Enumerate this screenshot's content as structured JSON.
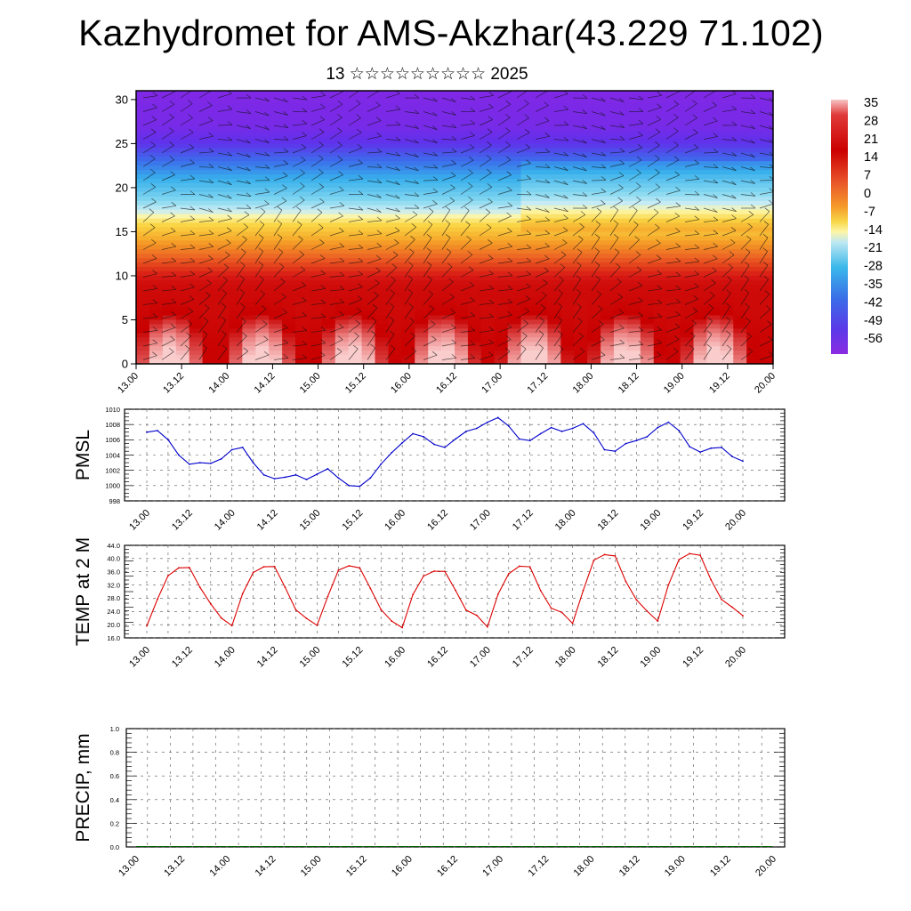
{
  "header": {
    "title": "Kazhydromet for AMS-Akzhar(43.229 71.102)",
    "subtitle": "13 ☆☆☆☆☆☆☆☆☆ 2025"
  },
  "colorbar": {
    "labels": [
      "35",
      "28",
      "21",
      "14",
      "7",
      "0",
      "-7",
      "-14",
      "-21",
      "-28",
      "-35",
      "-42",
      "-49",
      "-56"
    ]
  },
  "chart_data": [
    {
      "type": "heatmap",
      "title": "",
      "xlabel": "",
      "ylabel": "",
      "x_ticks": [
        "13.00",
        "13.12",
        "14.00",
        "14.12",
        "15.00",
        "15.12",
        "16.00",
        "16.12",
        "17.00",
        "17.12",
        "18.00",
        "18.12",
        "19.00",
        "19.12",
        "20.00"
      ],
      "y_ticks": [
        "0",
        "5",
        "10",
        "15",
        "20",
        "25",
        "30"
      ],
      "ylim": [
        0,
        31
      ],
      "colormap": "temperature (blue-purple = cold, red = warm), overlaid with wind barbs",
      "vertical_profile": {
        "level": [
          0,
          3,
          6,
          9,
          12,
          14,
          16,
          17,
          19,
          21,
          23,
          25,
          27,
          31
        ],
        "value": [
          33,
          30,
          26,
          24,
          12,
          4,
          -5,
          -12,
          -22,
          -30,
          -40,
          -50,
          -56,
          -58
        ]
      }
    },
    {
      "type": "line",
      "ylabel": "PMSL",
      "color": "#0000cc",
      "ylim": [
        998,
        1010
      ],
      "y_ticks": [
        "998",
        "1000",
        "1002",
        "1004",
        "1006",
        "1008",
        "1010"
      ],
      "x_ticks": [
        "13.00",
        "13.12",
        "14.00",
        "14.12",
        "15.00",
        "15.12",
        "16.00",
        "16.12",
        "17.00",
        "17.12",
        "18.00",
        "18.12",
        "19.00",
        "19.12",
        "20.00"
      ],
      "x_hours": [
        0,
        3,
        6,
        9,
        12,
        15,
        18,
        21,
        24,
        27,
        30,
        33,
        36,
        39,
        42,
        45,
        48,
        51,
        54,
        57,
        60,
        63,
        66,
        69,
        72,
        75,
        78,
        81,
        84,
        87,
        90,
        93,
        96,
        99,
        102,
        105,
        108,
        111,
        114,
        117,
        120,
        123,
        126,
        129,
        132,
        135,
        138,
        141,
        144,
        147,
        150,
        153,
        156,
        159,
        162,
        165,
        168
      ],
      "values": [
        1007.0,
        1007.2,
        1006.0,
        1004.0,
        1002.8,
        1003.0,
        1002.9,
        1003.5,
        1004.7,
        1005.0,
        1003.0,
        1001.4,
        1000.9,
        1001.1,
        1001.4,
        1000.8,
        1001.5,
        1002.2,
        1001.0,
        1000.0,
        999.9,
        1001.0,
        1002.8,
        1004.3,
        1005.6,
        1006.8,
        1006.4,
        1005.4,
        1005.0,
        1006.1,
        1007.1,
        1007.5,
        1008.3,
        1008.9,
        1007.8,
        1006.1,
        1005.9,
        1006.8,
        1007.6,
        1007.1,
        1007.5,
        1008.1,
        1006.9,
        1004.7,
        1004.5,
        1005.5,
        1005.9,
        1006.4,
        1007.6,
        1008.3,
        1007.2,
        1005.1,
        1004.4,
        1004.9,
        1005.0,
        1003.8,
        1003.2
      ]
    },
    {
      "type": "line",
      "ylabel": "TEMP at 2 M",
      "color": "#dd0000",
      "ylim": [
        16,
        44
      ],
      "y_ticks": [
        "16.0",
        "20.0",
        "24.0",
        "28.0",
        "32.0",
        "36.0",
        "40.0",
        "44.0"
      ],
      "x_ticks": [
        "13.00",
        "13.12",
        "14.00",
        "14.12",
        "15.00",
        "15.12",
        "16.00",
        "16.12",
        "17.00",
        "17.12",
        "18.00",
        "18.12",
        "19.00",
        "19.12",
        "20.00"
      ],
      "x_hours": [
        0,
        3,
        6,
        9,
        12,
        15,
        18,
        21,
        24,
        27,
        30,
        33,
        36,
        39,
        42,
        45,
        48,
        51,
        54,
        57,
        60,
        63,
        66,
        69,
        72,
        75,
        78,
        81,
        84,
        87,
        90,
        93,
        96,
        99,
        102,
        105,
        108,
        111,
        114,
        117,
        120,
        123,
        126,
        129,
        132,
        135,
        138,
        141,
        144,
        147,
        150,
        153,
        156,
        159,
        162,
        165,
        168
      ],
      "values": [
        19.6,
        27.7,
        34.8,
        37.2,
        37.3,
        31.3,
        26.3,
        22.0,
        19.7,
        29.4,
        35.8,
        37.5,
        37.6,
        31.3,
        24.5,
        21.9,
        19.8,
        28.5,
        36.5,
        37.8,
        37.2,
        31.0,
        24.6,
        21.1,
        19.1,
        29.1,
        34.7,
        36.2,
        36.1,
        30.4,
        24.4,
        22.8,
        19.3,
        29.2,
        35.4,
        37.7,
        37.5,
        30.3,
        25.0,
        23.7,
        20.4,
        30.3,
        39.5,
        41.2,
        40.8,
        33.1,
        27.5,
        24.1,
        21.1,
        32.0,
        39.7,
        41.5,
        41.0,
        33.6,
        27.6,
        25.3,
        22.7
      ]
    },
    {
      "type": "bar",
      "ylabel": "PRECIP, mm",
      "color": "#006400",
      "ylim": [
        0,
        1
      ],
      "y_ticks": [
        "0.0",
        "0.2",
        "0.4",
        "0.6",
        "0.8",
        "1.0"
      ],
      "x_ticks": [
        "13.00",
        "13.12",
        "14.00",
        "14.12",
        "15.00",
        "15.12",
        "16.00",
        "16.12",
        "17.00",
        "17.12",
        "18.00",
        "18.12",
        "19.00",
        "19.12",
        "20.00"
      ],
      "values": [
        0,
        0,
        0,
        0,
        0,
        0,
        0,
        0,
        0,
        0,
        0,
        0,
        0,
        0,
        0,
        0,
        0,
        0,
        0,
        0,
        0,
        0,
        0,
        0,
        0,
        0,
        0,
        0,
        0,
        0,
        0,
        0,
        0,
        0,
        0,
        0,
        0,
        0,
        0,
        0,
        0,
        0,
        0,
        0,
        0,
        0,
        0,
        0,
        0,
        0,
        0,
        0,
        0,
        0,
        0,
        0
      ]
    }
  ]
}
